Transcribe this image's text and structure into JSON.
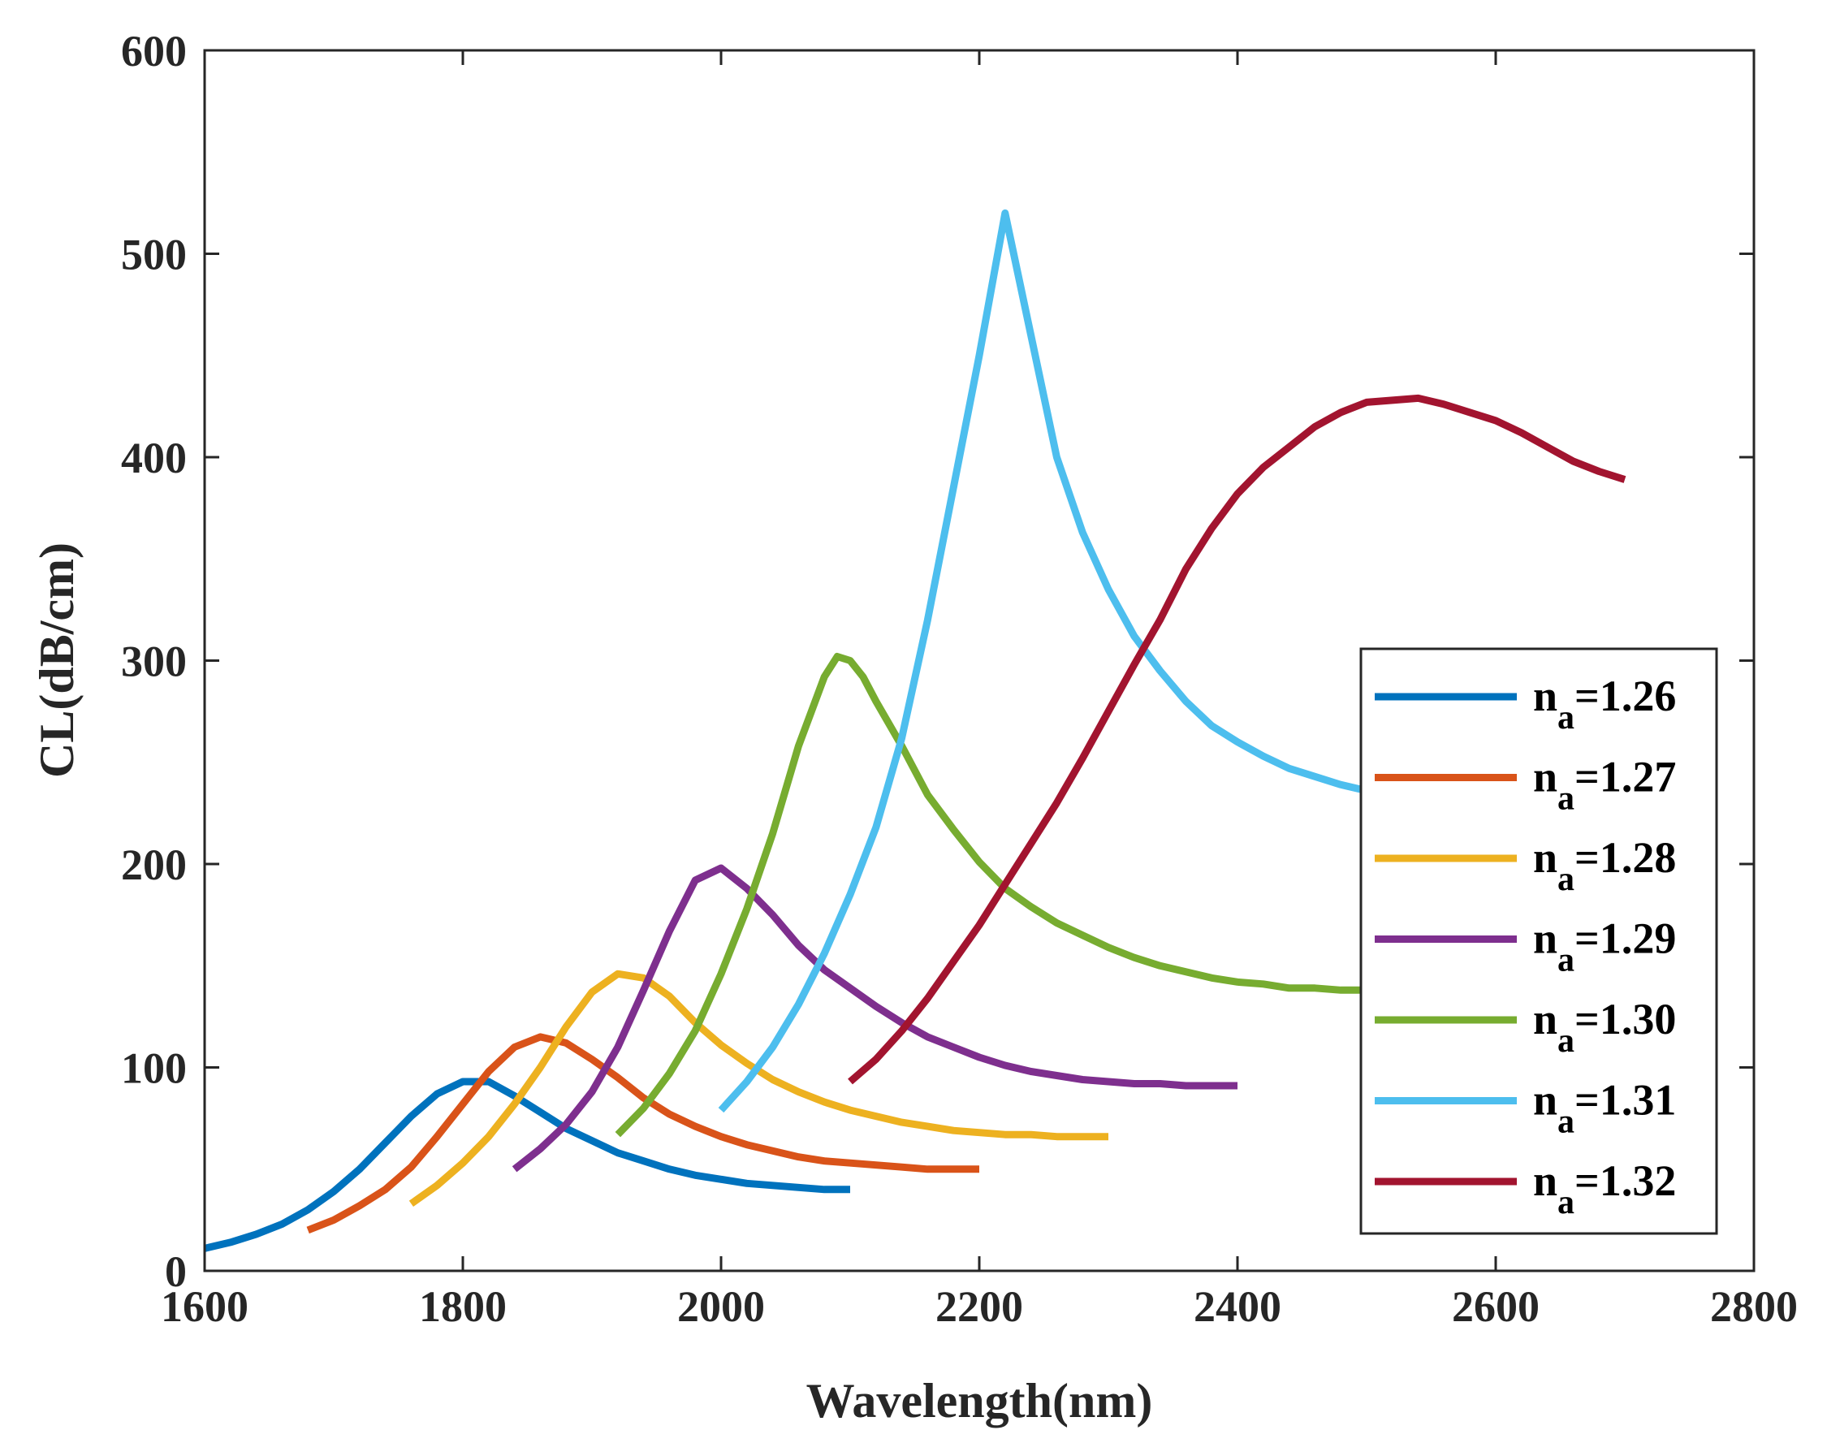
{
  "chart_data": {
    "type": "line",
    "title": "",
    "xlabel": "Wavelength(nm)",
    "ylabel": "CL(dB/cm)",
    "xlim": [
      1600,
      2800
    ],
    "ylim": [
      0,
      600
    ],
    "xticks": [
      1600,
      1800,
      2000,
      2200,
      2400,
      2600,
      2800
    ],
    "yticks": [
      0,
      100,
      200,
      300,
      400,
      500,
      600
    ],
    "grid": false,
    "legend_position": "lower-right",
    "series": [
      {
        "name_main": "n",
        "name_sub": "a",
        "name_value": "=1.26",
        "color": "#0072BD",
        "points": [
          [
            1600,
            11
          ],
          [
            1620,
            14
          ],
          [
            1640,
            18
          ],
          [
            1660,
            23
          ],
          [
            1680,
            30
          ],
          [
            1700,
            39
          ],
          [
            1720,
            50
          ],
          [
            1740,
            63
          ],
          [
            1760,
            76
          ],
          [
            1780,
            87
          ],
          [
            1800,
            93
          ],
          [
            1820,
            93
          ],
          [
            1840,
            86
          ],
          [
            1860,
            78
          ],
          [
            1880,
            70
          ],
          [
            1900,
            64
          ],
          [
            1920,
            58
          ],
          [
            1940,
            54
          ],
          [
            1960,
            50
          ],
          [
            1980,
            47
          ],
          [
            2000,
            45
          ],
          [
            2020,
            43
          ],
          [
            2040,
            42
          ],
          [
            2060,
            41
          ],
          [
            2080,
            40
          ],
          [
            2100,
            40
          ]
        ]
      },
      {
        "name_main": "n",
        "name_sub": "a",
        "name_value": "=1.27",
        "color": "#D95319",
        "points": [
          [
            1680,
            20
          ],
          [
            1700,
            25
          ],
          [
            1720,
            32
          ],
          [
            1740,
            40
          ],
          [
            1760,
            51
          ],
          [
            1780,
            66
          ],
          [
            1800,
            82
          ],
          [
            1820,
            98
          ],
          [
            1840,
            110
          ],
          [
            1860,
            115
          ],
          [
            1880,
            112
          ],
          [
            1900,
            104
          ],
          [
            1920,
            95
          ],
          [
            1940,
            85
          ],
          [
            1960,
            77
          ],
          [
            1980,
            71
          ],
          [
            2000,
            66
          ],
          [
            2020,
            62
          ],
          [
            2040,
            59
          ],
          [
            2060,
            56
          ],
          [
            2080,
            54
          ],
          [
            2100,
            53
          ],
          [
            2120,
            52
          ],
          [
            2140,
            51
          ],
          [
            2160,
            50
          ],
          [
            2180,
            50
          ],
          [
            2200,
            50
          ]
        ]
      },
      {
        "name_main": "n",
        "name_sub": "a",
        "name_value": "=1.28",
        "color": "#EDB120",
        "points": [
          [
            1760,
            33
          ],
          [
            1780,
            42
          ],
          [
            1800,
            53
          ],
          [
            1820,
            66
          ],
          [
            1840,
            82
          ],
          [
            1860,
            100
          ],
          [
            1880,
            120
          ],
          [
            1900,
            137
          ],
          [
            1920,
            146
          ],
          [
            1940,
            144
          ],
          [
            1960,
            135
          ],
          [
            1980,
            122
          ],
          [
            2000,
            111
          ],
          [
            2020,
            102
          ],
          [
            2040,
            94
          ],
          [
            2060,
            88
          ],
          [
            2080,
            83
          ],
          [
            2100,
            79
          ],
          [
            2120,
            76
          ],
          [
            2140,
            73
          ],
          [
            2160,
            71
          ],
          [
            2180,
            69
          ],
          [
            2200,
            68
          ],
          [
            2220,
            67
          ],
          [
            2240,
            67
          ],
          [
            2260,
            66
          ],
          [
            2280,
            66
          ],
          [
            2300,
            66
          ]
        ]
      },
      {
        "name_main": "n",
        "name_sub": "a",
        "name_value": "=1.29",
        "color": "#7E2F8E",
        "points": [
          [
            1840,
            50
          ],
          [
            1860,
            60
          ],
          [
            1880,
            72
          ],
          [
            1900,
            88
          ],
          [
            1920,
            110
          ],
          [
            1940,
            138
          ],
          [
            1960,
            167
          ],
          [
            1980,
            192
          ],
          [
            2000,
            198
          ],
          [
            2020,
            188
          ],
          [
            2040,
            175
          ],
          [
            2060,
            160
          ],
          [
            2080,
            148
          ],
          [
            2100,
            139
          ],
          [
            2120,
            130
          ],
          [
            2140,
            122
          ],
          [
            2160,
            115
          ],
          [
            2180,
            110
          ],
          [
            2200,
            105
          ],
          [
            2220,
            101
          ],
          [
            2240,
            98
          ],
          [
            2260,
            96
          ],
          [
            2280,
            94
          ],
          [
            2300,
            93
          ],
          [
            2320,
            92
          ],
          [
            2340,
            92
          ],
          [
            2360,
            91
          ],
          [
            2380,
            91
          ],
          [
            2400,
            91
          ]
        ]
      },
      {
        "name_main": "n",
        "name_sub": "a",
        "name_value": "=1.30",
        "color": "#77AC30",
        "points": [
          [
            1920,
            67
          ],
          [
            1940,
            80
          ],
          [
            1960,
            97
          ],
          [
            1980,
            118
          ],
          [
            2000,
            146
          ],
          [
            2020,
            178
          ],
          [
            2040,
            215
          ],
          [
            2060,
            258
          ],
          [
            2080,
            292
          ],
          [
            2090,
            302
          ],
          [
            2100,
            300
          ],
          [
            2110,
            292
          ],
          [
            2120,
            280
          ],
          [
            2140,
            258
          ],
          [
            2160,
            234
          ],
          [
            2180,
            217
          ],
          [
            2200,
            201
          ],
          [
            2220,
            188
          ],
          [
            2240,
            179
          ],
          [
            2260,
            171
          ],
          [
            2280,
            165
          ],
          [
            2300,
            159
          ],
          [
            2320,
            154
          ],
          [
            2340,
            150
          ],
          [
            2360,
            147
          ],
          [
            2380,
            144
          ],
          [
            2400,
            142
          ],
          [
            2420,
            141
          ],
          [
            2440,
            139
          ],
          [
            2460,
            139
          ],
          [
            2480,
            138
          ],
          [
            2500,
            138
          ]
        ]
      },
      {
        "name_main": "n",
        "name_sub": "a",
        "name_value": "=1.31",
        "color": "#4DBEEE",
        "points": [
          [
            2000,
            79
          ],
          [
            2020,
            93
          ],
          [
            2040,
            110
          ],
          [
            2060,
            131
          ],
          [
            2080,
            156
          ],
          [
            2100,
            185
          ],
          [
            2120,
            218
          ],
          [
            2140,
            262
          ],
          [
            2160,
            320
          ],
          [
            2180,
            385
          ],
          [
            2200,
            450
          ],
          [
            2220,
            520
          ],
          [
            2240,
            460
          ],
          [
            2260,
            400
          ],
          [
            2280,
            363
          ],
          [
            2300,
            335
          ],
          [
            2320,
            312
          ],
          [
            2340,
            295
          ],
          [
            2360,
            280
          ],
          [
            2380,
            268
          ],
          [
            2400,
            260
          ],
          [
            2420,
            253
          ],
          [
            2440,
            247
          ],
          [
            2460,
            243
          ],
          [
            2480,
            239
          ],
          [
            2500,
            236
          ]
        ]
      },
      {
        "name_main": "n",
        "name_sub": "a",
        "name_value": "=1.32",
        "color": "#A2142F",
        "points": [
          [
            2100,
            93
          ],
          [
            2120,
            104
          ],
          [
            2140,
            118
          ],
          [
            2160,
            134
          ],
          [
            2180,
            152
          ],
          [
            2200,
            170
          ],
          [
            2220,
            190
          ],
          [
            2240,
            210
          ],
          [
            2260,
            230
          ],
          [
            2280,
            252
          ],
          [
            2300,
            275
          ],
          [
            2320,
            298
          ],
          [
            2340,
            320
          ],
          [
            2360,
            345
          ],
          [
            2380,
            365
          ],
          [
            2400,
            382
          ],
          [
            2420,
            395
          ],
          [
            2440,
            405
          ],
          [
            2460,
            415
          ],
          [
            2480,
            422
          ],
          [
            2500,
            427
          ],
          [
            2520,
            428
          ],
          [
            2540,
            429
          ],
          [
            2560,
            426
          ],
          [
            2580,
            422
          ],
          [
            2600,
            418
          ],
          [
            2620,
            412
          ],
          [
            2640,
            405
          ],
          [
            2660,
            398
          ],
          [
            2680,
            393
          ],
          [
            2700,
            389
          ]
        ]
      }
    ]
  }
}
